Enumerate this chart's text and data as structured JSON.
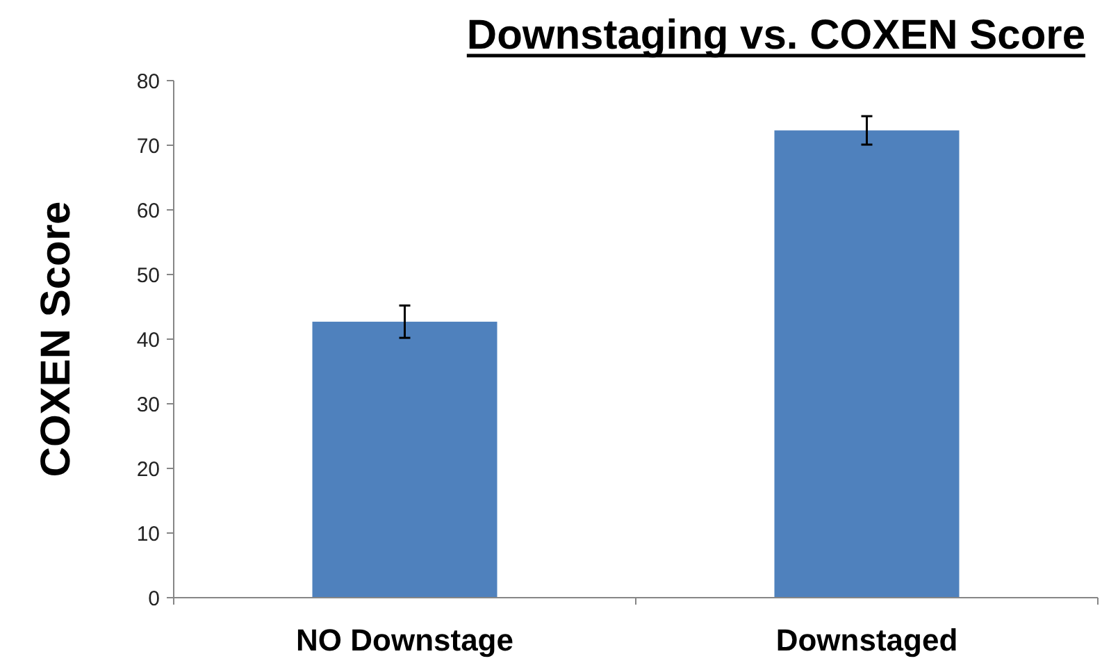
{
  "chart_data": {
    "type": "bar",
    "title": "Downstaging vs. COXEN Score",
    "ylabel": "COXEN Score",
    "categories": [
      "NO Downstage",
      "Downstaged"
    ],
    "values": [
      42.7,
      72.3
    ],
    "errors": [
      2.5,
      2.2
    ],
    "color": "#4f81bd",
    "ylim": [
      0,
      80
    ],
    "yticks": [
      0,
      10,
      20,
      30,
      40,
      50,
      60,
      70,
      80
    ],
    "grid": false
  }
}
